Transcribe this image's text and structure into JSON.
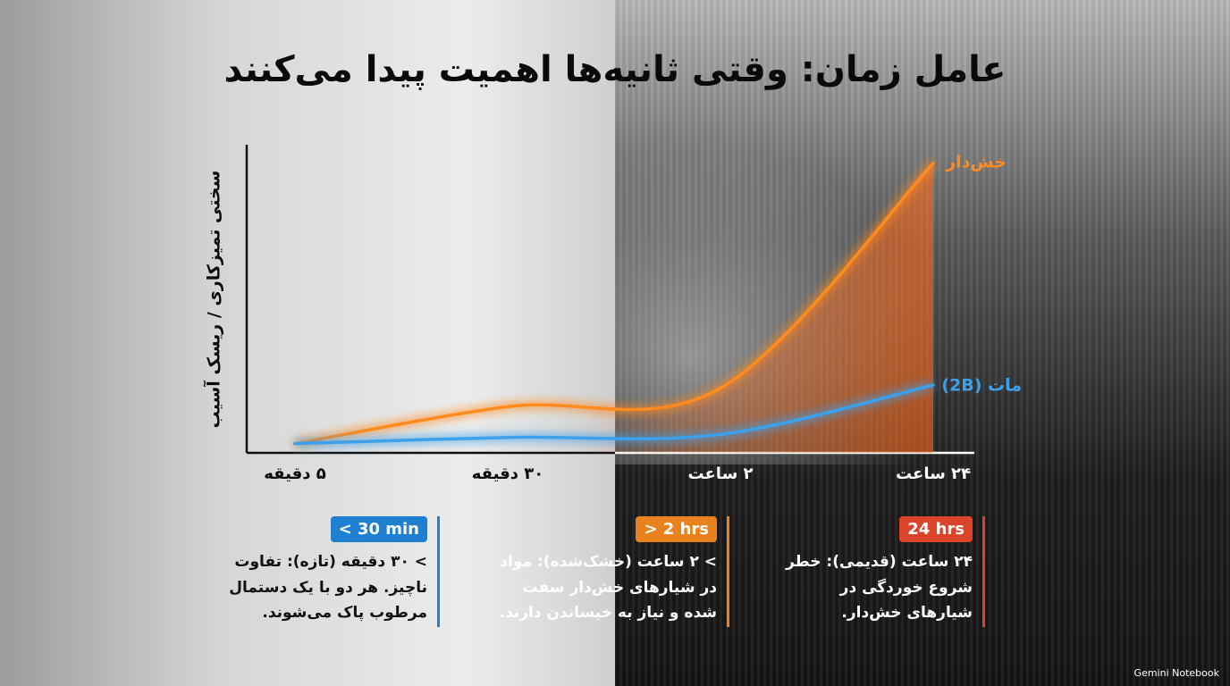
{
  "chart_data": {
    "type": "line",
    "title": "عامل زمان: وقتی ثانیه‌ها اهمیت پیدا می‌کنند",
    "y_label": "سختی تمیزکاری / ریسک آسیب",
    "categories": [
      "۵ دقیقه",
      "۳۰ دقیقه",
      "۲ ساعت",
      "۲۴ ساعت"
    ],
    "series": [
      {
        "name": "خش‌دار",
        "color": "#ff8a1e",
        "values": [
          3,
          15,
          21,
          94
        ]
      },
      {
        "name": "مات (2B)",
        "color": "#3ea0ea",
        "values": [
          3,
          5,
          6,
          22
        ]
      }
    ],
    "ylim": [
      0,
      100
    ]
  },
  "callouts": [
    {
      "tag": "< 30 min",
      "color": "#1f7fd0",
      "lines": [
        "> ۳۰ دقیقه (تازه): تفاوت",
        "ناچیز. هر دو با یک دستمال",
        "مرطوب پاک می‌شوند."
      ]
    },
    {
      "tag": "> 2 hrs",
      "color": "#e8821c",
      "lines": [
        "> ۲ ساعت (خشک‌شده): مواد",
        "در شیارهای خش‌دار سفت",
        "شده و نیاز به خیساندن دارند."
      ]
    },
    {
      "tag": "24 hrs",
      "color": "#d9442a",
      "lines": [
        "۲۴ ساعت (قدیمی): خطر",
        "شروع خوردگی در",
        "شیارهای خش‌دار."
      ]
    }
  ],
  "footer": "Gemini Notebook"
}
